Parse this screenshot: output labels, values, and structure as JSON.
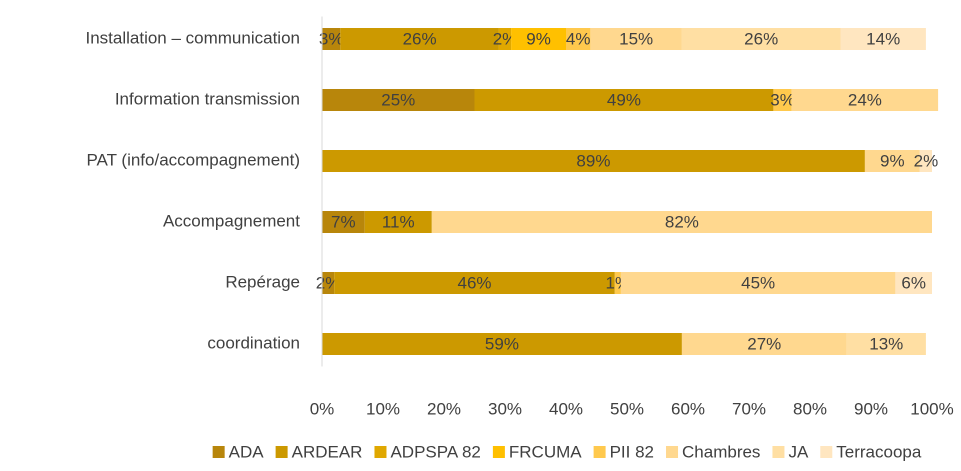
{
  "chart_data": {
    "type": "stacked_bar_horizontal",
    "categories": [
      "Installation – communication",
      "Information transmission",
      "PAT (info/accompagnement)",
      "Accompagnement",
      "Repérage",
      "coordination"
    ],
    "series": [
      {
        "name": "ADA",
        "color": "#b8860b",
        "values": [
          3,
          25,
          null,
          7,
          2,
          null
        ],
        "value_labels": [
          "3%",
          "25%",
          null,
          "7%",
          "2%",
          null
        ]
      },
      {
        "name": "ARDEAR",
        "color": "#cc9900",
        "values": [
          26,
          49,
          89,
          11,
          46,
          59
        ],
        "value_labels": [
          "26%",
          "49%",
          "89%",
          "11%",
          "46%",
          "59%"
        ]
      },
      {
        "name": "ADPSPA 82",
        "color": "#e0a800",
        "values": [
          2,
          null,
          null,
          null,
          null,
          null
        ],
        "value_labels": [
          "2%",
          null,
          null,
          null,
          null,
          null
        ]
      },
      {
        "name": "FRCUMA",
        "color": "#ffc000",
        "values": [
          9,
          null,
          null,
          null,
          null,
          null
        ],
        "value_labels": [
          "9%",
          null,
          null,
          null,
          null,
          null
        ]
      },
      {
        "name": "PII 82",
        "color": "#ffc94d",
        "values": [
          4,
          3,
          null,
          null,
          1,
          null
        ],
        "value_labels": [
          "4%",
          "3%",
          null,
          null,
          "1%",
          null
        ]
      },
      {
        "name": "Chambres",
        "color": "#ffd88f",
        "values": [
          15,
          24,
          9,
          82,
          45,
          27
        ],
        "value_labels": [
          "15%",
          "24%",
          "9%",
          "82%",
          "45%",
          "27%"
        ]
      },
      {
        "name": "JA",
        "color": "#ffdfa3",
        "values": [
          26,
          null,
          null,
          null,
          null,
          13
        ],
        "value_labels": [
          "26%",
          null,
          null,
          null,
          null,
          "13%"
        ]
      },
      {
        "name": "Terracoopa",
        "color": "#ffe6c0",
        "values": [
          14,
          null,
          2,
          null,
          6,
          null
        ],
        "value_labels": [
          "14%",
          null,
          "2%",
          null,
          "6%",
          null
        ]
      }
    ],
    "xlim": [
      0,
      100
    ],
    "xticks": [
      {
        "value": 0,
        "label": "0%"
      },
      {
        "value": 10,
        "label": "10%"
      },
      {
        "value": 20,
        "label": "20%"
      },
      {
        "value": 30,
        "label": "30%"
      },
      {
        "value": 40,
        "label": "40%"
      },
      {
        "value": 50,
        "label": "50%"
      },
      {
        "value": 60,
        "label": "60%"
      },
      {
        "value": 70,
        "label": "70%"
      },
      {
        "value": 80,
        "label": "80%"
      },
      {
        "value": 90,
        "label": "90%"
      },
      {
        "value": 100,
        "label": "100%"
      }
    ],
    "legend": "bottom"
  }
}
